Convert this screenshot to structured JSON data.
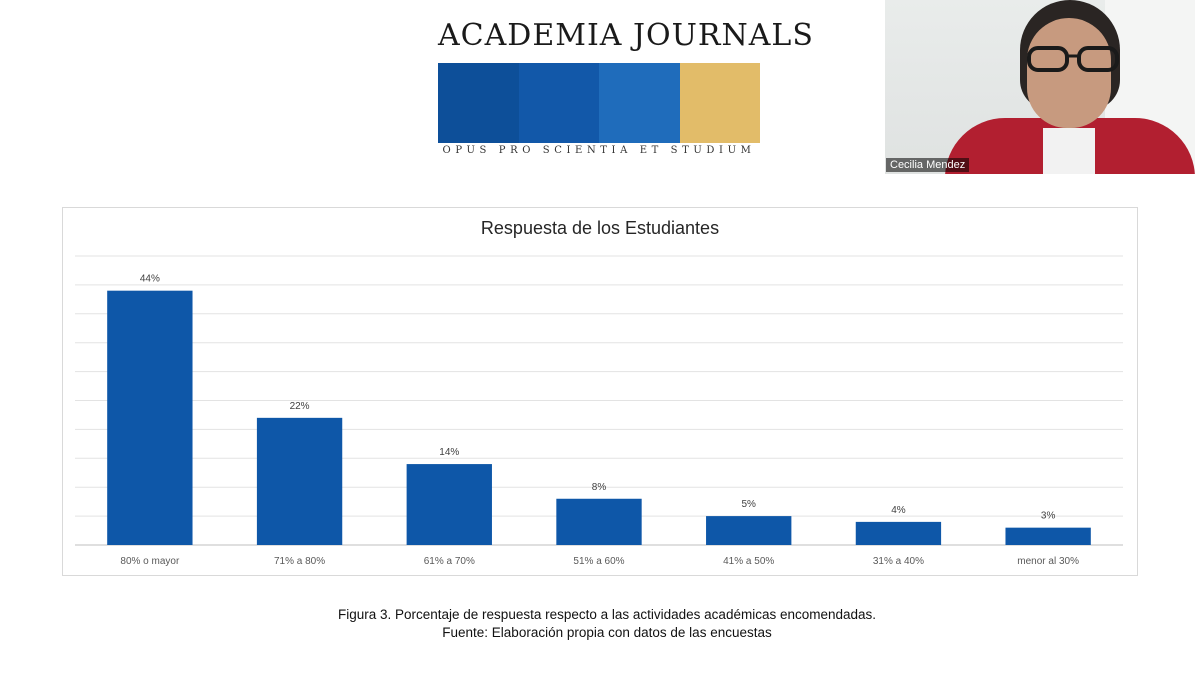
{
  "logo": {
    "title": "ACADEMIA JOURNALS",
    "tagline": "OPUS PRO SCIENTIA ET STUDIUM",
    "band_colors": [
      "#0d4f99",
      "#1258a9",
      "#1f6cbb",
      "#e2bc69"
    ]
  },
  "webcam": {
    "participant_name": "Cecilia Mendez"
  },
  "chart_data": {
    "type": "bar",
    "title": "Respuesta de los Estudiantes",
    "categories": [
      "80% o mayor",
      "71% a 80%",
      "61% a 70%",
      "51% a 60%",
      "41% a 50%",
      "31% a 40%",
      "menor al 30%"
    ],
    "values": [
      44,
      22,
      14,
      8,
      5,
      4,
      3
    ],
    "data_labels": [
      "44%",
      "22%",
      "14%",
      "8%",
      "5%",
      "4%",
      "3%"
    ],
    "ylim": [
      0,
      50
    ],
    "y_grid_step": 5,
    "grid": true,
    "bar_color": "#0e57a8",
    "xlabel": "",
    "ylabel": ""
  },
  "caption": {
    "line1": "Figura 3. Porcentaje de respuesta respecto a las actividades académicas encomendadas.",
    "line2": "Fuente: Elaboración propia con datos de las encuestas"
  }
}
